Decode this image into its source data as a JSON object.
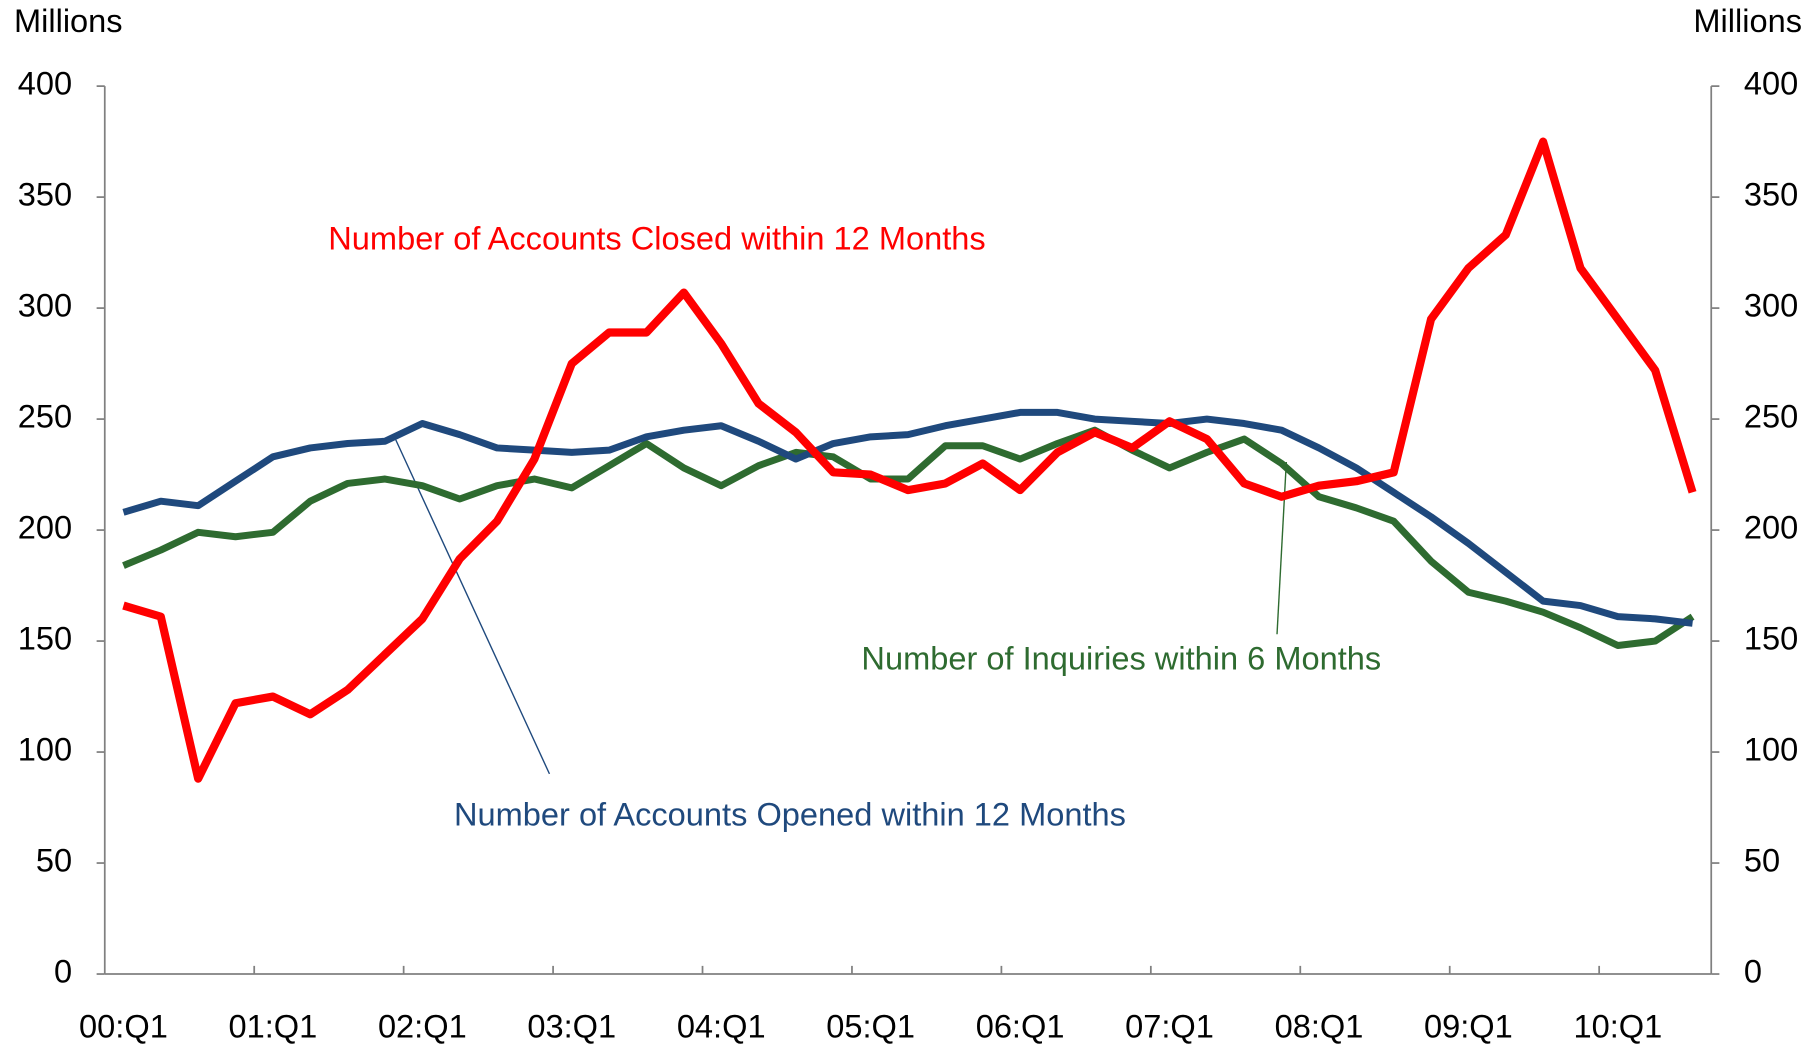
{
  "chart_data": {
    "type": "line",
    "ylabel": "Millions",
    "y2label": "Millions",
    "categories": [
      "00:Q1",
      null,
      null,
      null,
      "01:Q1",
      null,
      null,
      null,
      "02:Q1",
      null,
      null,
      null,
      "03:Q1",
      null,
      null,
      null,
      "04:Q1",
      null,
      null,
      null,
      "05:Q1",
      null,
      null,
      null,
      "06:Q1",
      null,
      null,
      null,
      "07:Q1",
      null,
      null,
      null,
      "08:Q1",
      null,
      null,
      null,
      "09:Q1",
      null,
      null,
      null,
      "10:Q1",
      null,
      null
    ],
    "series": [
      {
        "name": "Number of Accounts Closed within 12 Months",
        "color": "#ff0000",
        "values": [
          166,
          161,
          88,
          122,
          125,
          117,
          128,
          144,
          160,
          187,
          204,
          232,
          275,
          289,
          289,
          307,
          284,
          257,
          244,
          226,
          225,
          218,
          221,
          230,
          218,
          235,
          244,
          237,
          249,
          241,
          221,
          215,
          220,
          222,
          226,
          295,
          318,
          333,
          375,
          318,
          295,
          272,
          217
        ]
      },
      {
        "name": "Number of Accounts Opened within 12 Months",
        "color": "#1f497d",
        "values": [
          208,
          213,
          211,
          222,
          233,
          237,
          239,
          240,
          248,
          243,
          237,
          236,
          235,
          236,
          242,
          245,
          247,
          240,
          232,
          239,
          242,
          243,
          247,
          250,
          253,
          253,
          250,
          249,
          248,
          250,
          248,
          245,
          237,
          228,
          217,
          206,
          194,
          181,
          168,
          166,
          161,
          160,
          158
        ]
      },
      {
        "name": "Number of Inquiries within 6 Months",
        "color": "#2e6b30",
        "values": [
          184,
          191,
          199,
          197,
          199,
          213,
          221,
          223,
          220,
          214,
          220,
          223,
          219,
          229,
          239,
          228,
          220,
          229,
          235,
          233,
          223,
          223,
          238,
          238,
          232,
          239,
          245,
          236,
          228,
          235,
          241,
          230,
          215,
          210,
          204,
          186,
          172,
          168,
          163,
          156,
          148,
          150,
          161
        ]
      }
    ],
    "ylim": [
      0,
      400
    ],
    "yticks": [
      0,
      50,
      100,
      150,
      200,
      250,
      300,
      350,
      400
    ],
    "y2lim": [
      0,
      400
    ],
    "y2ticks": [
      0,
      50,
      100,
      150,
      200,
      250,
      300,
      350,
      400
    ]
  }
}
